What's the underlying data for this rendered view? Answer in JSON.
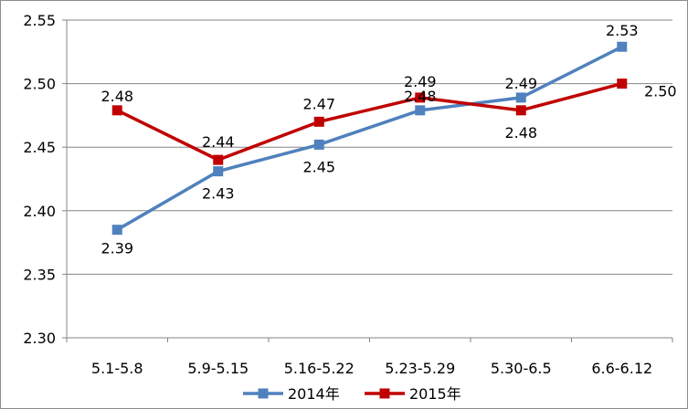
{
  "chart_data": {
    "type": "line",
    "title": "",
    "xlabel": "",
    "ylabel": "",
    "categories": [
      "5.1-5.8",
      "5.9-5.15",
      "5.16-5.22",
      "5.23-5.29",
      "5.30-6.5",
      "6.6-6.12"
    ],
    "ylim": [
      2.3,
      2.55
    ],
    "yticks": [
      "2.30",
      "2.35",
      "2.40",
      "2.45",
      "2.50",
      "2.55"
    ],
    "grid": "horizontal",
    "legend_position": "bottom",
    "series": [
      {
        "name": "2014年",
        "color": "#4f81bd",
        "marker": "square",
        "values": [
          2.385,
          2.431,
          2.452,
          2.479,
          2.489,
          2.529
        ],
        "labels": [
          "2.39",
          "2.43",
          "2.45",
          "2.48",
          "2.49",
          "2.53"
        ]
      },
      {
        "name": "2015年",
        "color": "#c00000",
        "marker": "square",
        "values": [
          2.479,
          2.44,
          2.47,
          2.489,
          2.479,
          2.5
        ],
        "labels": [
          "2.48",
          "2.44",
          "2.47",
          "2.49",
          "2.48",
          "2.50"
        ]
      }
    ]
  }
}
